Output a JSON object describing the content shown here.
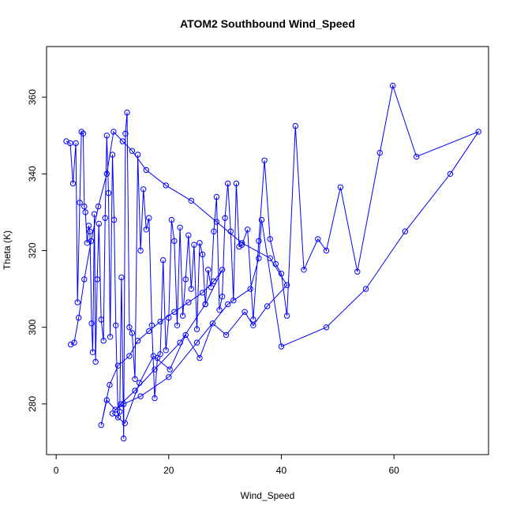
{
  "chart_data": {
    "type": "line",
    "title": "ATOM2 Southbound Wind_Speed",
    "xlabel": "Wind_Speed",
    "ylabel": "Theta (K)",
    "xlim": [
      -1.7,
      76.8
    ],
    "ylim": [
      266.8,
      373.2
    ],
    "xticks": [
      0,
      20,
      40,
      60
    ],
    "yticks": [
      280,
      300,
      320,
      340,
      360
    ],
    "grid": false,
    "legend": "none",
    "color": "#0000ff",
    "markers": "open-circle",
    "series": [
      {
        "x": [
          1.8,
          2.5,
          3.0,
          3.5,
          3.8,
          4.2,
          4.5,
          4.8,
          5.0,
          5.2,
          5.5,
          5.8,
          6.0,
          6.3,
          6.5,
          6.8,
          7.0,
          7.3,
          7.6,
          8.0,
          8.4,
          8.7,
          9.0,
          9.3,
          9.6,
          10.0,
          10.3,
          10.6,
          11.0,
          11.3,
          11.6,
          12.0,
          12.3,
          12.6,
          13.0,
          13.5,
          14.0,
          14.5,
          15.0,
          15.5,
          16.0,
          16.5,
          17.0,
          17.5,
          18.0,
          18.5,
          19.0,
          19.5,
          20.0,
          20.5,
          21.0,
          21.5,
          22.0,
          22.5,
          23.0,
          23.5,
          24.0,
          24.5,
          25.0,
          25.5,
          26.0,
          26.5,
          27.0,
          27.5,
          28.0,
          28.5,
          29.0,
          29.5,
          30.0,
          30.5,
          31.0,
          31.5,
          32.0,
          32.5,
          33.0,
          34.0,
          35.0,
          36.0,
          37.0,
          38.0,
          39.0,
          40.0,
          41.0,
          42.5,
          44.0,
          46.5,
          48.0,
          50.5,
          53.5,
          57.5,
          59.8,
          64.0,
          75.0,
          70.0,
          62.0,
          55.0,
          48.0,
          40.0,
          36.5,
          36.0,
          34.5,
          30.5,
          25.0,
          20.0,
          15.0,
          12.0,
          10.5,
          9.0,
          8.0,
          9.5,
          11.0,
          13.0,
          14.5,
          16.5,
          18.5,
          21.0,
          23.5,
          26.0,
          28.0,
          29.5,
          26.5,
          22.0,
          17.5,
          14.0,
          11.5,
          10.0,
          12.2,
          14.8,
          17.3,
          20.2,
          23.0,
          25.5,
          27.8,
          30.2,
          33.5,
          35.0,
          37.5,
          41.0,
          38.0,
          33.0,
          28.5,
          24.0,
          19.5,
          16.0,
          13.5,
          11.8,
          10.2,
          9.0,
          7.5,
          6.2,
          5.0,
          4.0,
          3.2,
          2.6
        ],
        "y": [
          348.5,
          348.0,
          337.5,
          348.0,
          306.5,
          332.5,
          351.0,
          350.5,
          331.5,
          330.0,
          322.0,
          326.5,
          325.0,
          301.0,
          293.5,
          329.5,
          291.0,
          312.5,
          327.0,
          302.0,
          296.5,
          328.5,
          350.0,
          335.0,
          297.5,
          345.0,
          328.0,
          300.5,
          276.5,
          278.0,
          313.0,
          271.0,
          350.5,
          356.0,
          300.0,
          298.5,
          286.5,
          345.0,
          320.0,
          336.0,
          325.5,
          328.5,
          300.5,
          281.5,
          292.0,
          293.0,
          317.5,
          294.0,
          302.5,
          328.0,
          322.5,
          300.5,
          326.0,
          303.0,
          312.5,
          324.0,
          310.0,
          321.5,
          299.5,
          322.0,
          319.0,
          306.0,
          315.0,
          310.5,
          325.0,
          334.0,
          304.5,
          308.0,
          328.5,
          337.5,
          325.0,
          307.0,
          337.5,
          321.0,
          321.5,
          325.5,
          302.0,
          322.5,
          343.5,
          323.0,
          316.5,
          314.0,
          303.0,
          352.5,
          315.0,
          323.0,
          320.0,
          336.5,
          314.5,
          345.5,
          363.0,
          344.5,
          351.0,
          340.0,
          325.0,
          310.0,
          300.0,
          295.0,
          328.0,
          318.0,
          310.0,
          306.0,
          296.0,
          287.0,
          282.0,
          280.0,
          278.5,
          281.0,
          274.5,
          285.0,
          290.0,
          292.5,
          296.5,
          299.0,
          301.5,
          304.0,
          306.5,
          309.0,
          312.0,
          315.0,
          306.0,
          296.0,
          289.0,
          283.5,
          280.0,
          277.5,
          275.0,
          285.5,
          292.5,
          289.0,
          298.0,
          292.0,
          301.0,
          298.0,
          304.0,
          300.5,
          305.5,
          311.0,
          318.0,
          322.0,
          327.5,
          333.0,
          337.0,
          341.0,
          346.0,
          348.5,
          351.0,
          340.0,
          331.5,
          322.5,
          312.5,
          302.5,
          296.0,
          295.5
        ]
      }
    ]
  }
}
